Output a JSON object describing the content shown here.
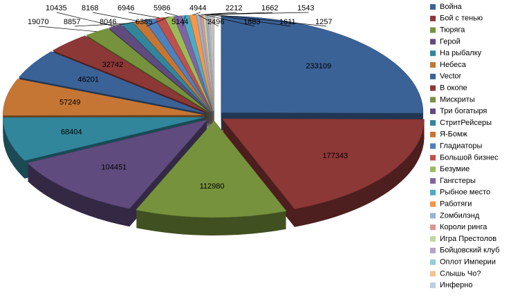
{
  "chart_data": {
    "type": "pie",
    "categories": [
      "Война",
      "Бой с тенью",
      "Тюряга",
      "Герой",
      "На рыбалку",
      "Небеса",
      "Vector",
      "В окопе",
      "Мискриты",
      "Три богатыря",
      "СтритРейсеры",
      "Я-Бомж",
      "Гладиаторы",
      "Большой бизнес",
      "Безумие",
      "Гангстеры",
      "Рыбное место",
      "Работяги",
      "Zомбилэнд",
      "Короли ринга",
      "Игра Престолов",
      "Бойцовский клуб",
      "Оплот Империи",
      "Слышь Чо?",
      "Инферно"
    ],
    "values": [
      233109,
      177343,
      112980,
      104451,
      68404,
      57249,
      46201,
      32742,
      19070,
      10435,
      8857,
      8168,
      8046,
      6946,
      6385,
      5986,
      5144,
      4944,
      2496,
      2212,
      1883,
      1662,
      1611,
      1543,
      1257
    ],
    "colors": [
      "#3b6296",
      "#8c3836",
      "#76923c",
      "#5f4b7e",
      "#31869b",
      "#c67634",
      "#3b6296",
      "#8c3836",
      "#76923c",
      "#5f4b7e",
      "#31869b",
      "#c67634",
      "#4f81bd",
      "#c0504d",
      "#9bbb59",
      "#8064a2",
      "#4bacc6",
      "#f79646",
      "#95b3d7",
      "#d99694",
      "#c3d69b",
      "#b3a2c7",
      "#93cddd",
      "#fac090",
      "#b9cde5"
    ],
    "legend": "right"
  }
}
